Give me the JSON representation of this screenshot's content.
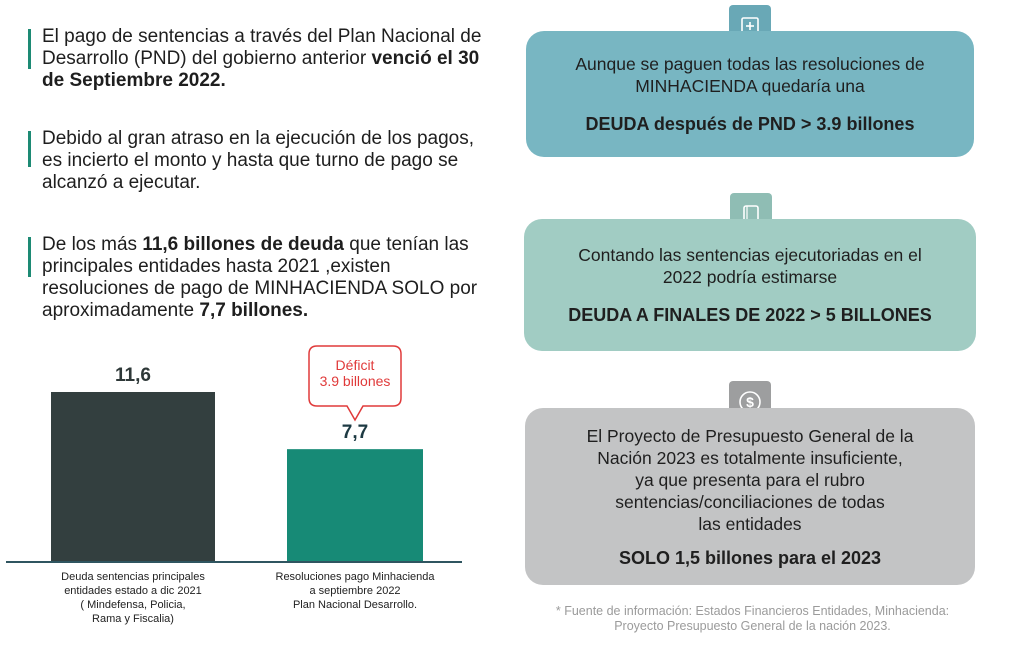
{
  "paragraphs": {
    "p1": {
      "pre": "El pago de sentencias a través del Plan Nacional de Desarrollo (PND) del gobierno anterior ",
      "bold": "venció el 30 de Septiembre 2022."
    },
    "p2": {
      "text": "Debido al gran atraso en la ejecución de los pagos,  es incierto el monto y hasta que turno de pago se alcanzó a ejecutar."
    },
    "p3": {
      "pre": "De los más ",
      "bold1": "11,6 billones de deuda",
      "mid": " que tenían las principales entidades hasta 2021 ,existen resoluciones de pago de MINHACIENDA SOLO por aproximadamente ",
      "bold2": "7,7 billones."
    }
  },
  "chart_data": {
    "type": "bar",
    "categories": [
      [
        "Deuda sentencias principales",
        "entidades estado a dic 2021",
        "( Mindefensa, Policia,",
        "Rama y Fiscalia)"
      ],
      [
        "Resoluciones pago Minhacienda",
        "a septiembre 2022",
        "Plan Nacional Desarrollo."
      ]
    ],
    "values": [
      11.6,
      7.7
    ],
    "value_labels": [
      "11,6",
      "7,7"
    ],
    "colors": [
      "#333f3f",
      "#178a76"
    ],
    "label_colors": [
      "#2e3838",
      "#1d3a43"
    ],
    "ylim": [
      0,
      11.6
    ],
    "callout": {
      "lines": [
        "Déficit",
        "3.9 billones"
      ],
      "color": "#e03a3a"
    },
    "axis_color": "#2f5560"
  },
  "boxes": {
    "box1": {
      "lines": [
        "Aunque se paguen todas las resoluciones de",
        "MINHACIENDA quedaría una"
      ],
      "strong": "DEUDA después de PND > 3.9 billones"
    },
    "box2": {
      "lines": [
        "Contando las sentencias ejecutoriadas en el",
        "2022 podría estimarse"
      ],
      "strong": "DEUDA A FINALES DE 2022 > 5 BILLONES"
    },
    "box3": {
      "lines": [
        "El Proyecto de Presupuesto General de la",
        "Nación 2023 es totalmente insuficiente,",
        "ya que presenta para el rubro",
        "sentencias/conciliaciones de todas",
        "las entidades"
      ],
      "strong": "SOLO 1,5 billones para el 2023"
    }
  },
  "icons": [
    "plus-document-icon",
    "document-icon",
    "dollar-coin-icon"
  ],
  "footnote": {
    "line1": "* Fuente de información: Estados Financieros Entidades, Minhacienda:",
    "line2": "Proyecto Presupuesto General de la nación 2023."
  }
}
